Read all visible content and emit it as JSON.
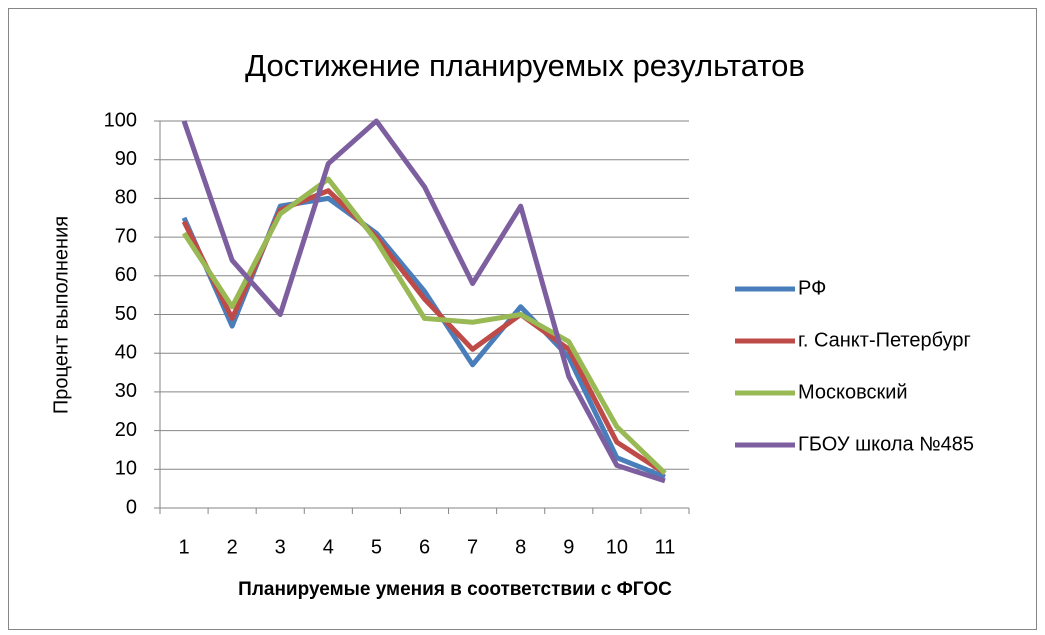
{
  "chart_data": {
    "type": "line",
    "title": "Достижение планируемых результатов",
    "x_label": "Планируемые умения в соответствии с ФГОС",
    "y_label": "Процент выполнения",
    "categories": [
      "1",
      "2",
      "3",
      "4",
      "5",
      "6",
      "7",
      "8",
      "9",
      "10",
      "11"
    ],
    "series": [
      {
        "name": "РФ",
        "color": "#4a7ebb",
        "values": [
          75,
          47,
          78,
          80,
          71,
          56,
          37,
          52,
          39,
          13,
          8
        ]
      },
      {
        "name": "г. Санкт-Петербург",
        "color": "#be4b48",
        "values": [
          74,
          49,
          77,
          82,
          70,
          54,
          41,
          50,
          41,
          17,
          9
        ]
      },
      {
        "name": "Московский",
        "color": "#98b954",
        "values": [
          71,
          52,
          76,
          85,
          69,
          49,
          48,
          50,
          43,
          21,
          9
        ]
      },
      {
        "name": "ГБОУ школа №485",
        "color": "#7d5fa0",
        "values": [
          100,
          64,
          50,
          89,
          100,
          83,
          58,
          78,
          34,
          11,
          7
        ]
      }
    ],
    "ylim": [
      0,
      100
    ],
    "yticks": [
      0,
      10,
      20,
      30,
      40,
      50,
      60,
      70,
      80,
      90,
      100
    ],
    "grid": true,
    "legend": "right"
  }
}
